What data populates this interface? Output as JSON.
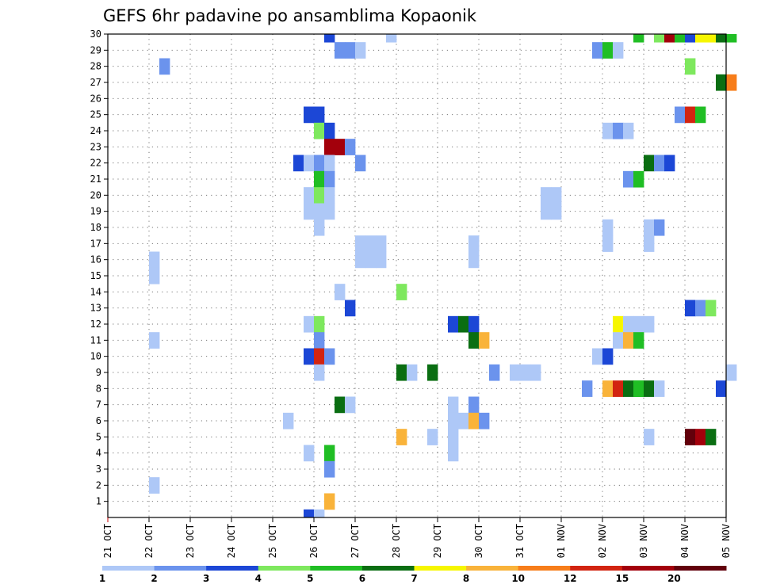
{
  "chart_data": {
    "type": "heatmap",
    "title": "GEFS 6hr padavine po ansamblima Kopaonik",
    "x_ticks": [
      "21 OCT",
      "22 OCT",
      "23 OCT",
      "24 OCT",
      "25 OCT",
      "26 OCT",
      "27 OCT",
      "28 OCT",
      "29 OCT",
      "30 OCT",
      "31 OCT",
      "01 NOV",
      "02 NOV",
      "03 NOV",
      "04 NOV",
      "05 NOV"
    ],
    "y_ticks": [
      1,
      2,
      3,
      4,
      5,
      6,
      7,
      8,
      9,
      10,
      11,
      12,
      13,
      14,
      15,
      16,
      17,
      18,
      19,
      20,
      21,
      22,
      23,
      24,
      25,
      26,
      27,
      28,
      29,
      30
    ],
    "x_range": [
      "21 OCT 00Z",
      "05 NOV 00Z"
    ],
    "y_range": [
      0,
      30
    ],
    "time_step_hours": 6,
    "grid": "dotted",
    "legend": {
      "placement": "bottom",
      "levels": [
        "1",
        "2",
        "3",
        "4",
        "5",
        "6",
        "7",
        "8",
        "10",
        "12",
        "15",
        "20"
      ],
      "colors": [
        "#aec8f7",
        "#6b93ed",
        "#1c47d6",
        "#7ee85e",
        "#20be24",
        "#0a6e12",
        "#f6f600",
        "#f9b33a",
        "#f77d1a",
        "#d22410",
        "#a3000b",
        "#62000b"
      ]
    },
    "cells": [
      {
        "member": 30,
        "time": "26 OCT 06Z",
        "bin": 3
      },
      {
        "member": 30,
        "time": "27 OCT 18Z",
        "bin": 1
      },
      {
        "member": 30,
        "time": "02 NOV 18Z",
        "bin": 5
      },
      {
        "member": 30,
        "time": "03 NOV 06Z",
        "bin": 4
      },
      {
        "member": 30,
        "time": "03 NOV 12Z",
        "bin": 11
      },
      {
        "member": 30,
        "time": "03 NOV 18Z",
        "bin": 5
      },
      {
        "member": 30,
        "time": "04 NOV 00Z",
        "bin": 3
      },
      {
        "member": 30,
        "time": "04 NOV 06Z",
        "bin": 7
      },
      {
        "member": 30,
        "time": "04 NOV 12Z",
        "bin": 7
      },
      {
        "member": 30,
        "time": "04 NOV 18Z",
        "bin": 6
      },
      {
        "member": 30,
        "time": "05 NOV 00Z",
        "bin": 5
      },
      {
        "member": 29,
        "time": "26 OCT 12Z",
        "bin": 2
      },
      {
        "member": 29,
        "time": "26 OCT 18Z",
        "bin": 2
      },
      {
        "member": 29,
        "time": "27 OCT 00Z",
        "bin": 1
      },
      {
        "member": 29,
        "time": "01 NOV 18Z",
        "bin": 2
      },
      {
        "member": 29,
        "time": "02 NOV 00Z",
        "bin": 5
      },
      {
        "member": 29,
        "time": "02 NOV 06Z",
        "bin": 1
      },
      {
        "member": 28,
        "time": "22 OCT 06Z",
        "bin": 2
      },
      {
        "member": 28,
        "time": "04 NOV 00Z",
        "bin": 4
      },
      {
        "member": 27,
        "time": "04 NOV 18Z",
        "bin": 6
      },
      {
        "member": 27,
        "time": "05 NOV 00Z",
        "bin": 9
      },
      {
        "member": 25,
        "time": "25 OCT 18Z",
        "bin": 3
      },
      {
        "member": 25,
        "time": "26 OCT 00Z",
        "bin": 3
      },
      {
        "member": 25,
        "time": "03 NOV 18Z",
        "bin": 2
      },
      {
        "member": 25,
        "time": "04 NOV 00Z",
        "bin": 10
      },
      {
        "member": 25,
        "time": "04 NOV 06Z",
        "bin": 5
      },
      {
        "member": 24,
        "time": "26 OCT 00Z",
        "bin": 4
      },
      {
        "member": 24,
        "time": "26 OCT 06Z",
        "bin": 3
      },
      {
        "member": 24,
        "time": "02 NOV 00Z",
        "bin": 1
      },
      {
        "member": 24,
        "time": "02 NOV 06Z",
        "bin": 2
      },
      {
        "member": 24,
        "time": "02 NOV 12Z",
        "bin": 1
      },
      {
        "member": 23,
        "time": "26 OCT 06Z",
        "bin": 11
      },
      {
        "member": 23,
        "time": "26 OCT 12Z",
        "bin": 11
      },
      {
        "member": 23,
        "time": "26 OCT 18Z",
        "bin": 2
      },
      {
        "member": 22,
        "time": "25 OCT 12Z",
        "bin": 3
      },
      {
        "member": 22,
        "time": "25 OCT 18Z",
        "bin": 1
      },
      {
        "member": 22,
        "time": "26 OCT 00Z",
        "bin": 2
      },
      {
        "member": 22,
        "time": "26 OCT 06Z",
        "bin": 1
      },
      {
        "member": 22,
        "time": "27 OCT 00Z",
        "bin": 2
      },
      {
        "member": 22,
        "time": "03 NOV 00Z",
        "bin": 6
      },
      {
        "member": 22,
        "time": "03 NOV 06Z",
        "bin": 2
      },
      {
        "member": 22,
        "time": "03 NOV 12Z",
        "bin": 3
      },
      {
        "member": 21,
        "time": "26 OCT 00Z",
        "bin": 5
      },
      {
        "member": 21,
        "time": "26 OCT 06Z",
        "bin": 2
      },
      {
        "member": 21,
        "time": "02 NOV 12Z",
        "bin": 2
      },
      {
        "member": 21,
        "time": "02 NOV 18Z",
        "bin": 5
      },
      {
        "member": 20,
        "time": "25 OCT 18Z",
        "bin": 1
      },
      {
        "member": 20,
        "time": "26 OCT 00Z",
        "bin": 4
      },
      {
        "member": 20,
        "time": "26 OCT 06Z",
        "bin": 1
      },
      {
        "member": 20,
        "time": "31 OCT 12Z",
        "bin": 1
      },
      {
        "member": 20,
        "time": "31 OCT 18Z",
        "bin": 1
      },
      {
        "member": 19,
        "time": "25 OCT 18Z",
        "bin": 1
      },
      {
        "member": 19,
        "time": "26 OCT 00Z",
        "bin": 1
      },
      {
        "member": 19,
        "time": "26 OCT 06Z",
        "bin": 1
      },
      {
        "member": 19,
        "time": "31 OCT 12Z",
        "bin": 1
      },
      {
        "member": 19,
        "time": "31 OCT 18Z",
        "bin": 1
      },
      {
        "member": 18,
        "time": "26 OCT 00Z",
        "bin": 1
      },
      {
        "member": 18,
        "time": "02 NOV 00Z",
        "bin": 1
      },
      {
        "member": 18,
        "time": "03 NOV 00Z",
        "bin": 1
      },
      {
        "member": 18,
        "time": "03 NOV 06Z",
        "bin": 2
      },
      {
        "member": 17,
        "time": "27 OCT 00Z",
        "bin": 1
      },
      {
        "member": 17,
        "time": "27 OCT 06Z",
        "bin": 1
      },
      {
        "member": 17,
        "time": "27 OCT 12Z",
        "bin": 1
      },
      {
        "member": 17,
        "time": "29 OCT 18Z",
        "bin": 1
      },
      {
        "member": 17,
        "time": "02 NOV 00Z",
        "bin": 1
      },
      {
        "member": 17,
        "time": "03 NOV 00Z",
        "bin": 1
      },
      {
        "member": 16,
        "time": "22 OCT 00Z",
        "bin": 1
      },
      {
        "member": 16,
        "time": "27 OCT 00Z",
        "bin": 1
      },
      {
        "member": 16,
        "time": "27 OCT 06Z",
        "bin": 1
      },
      {
        "member": 16,
        "time": "27 OCT 12Z",
        "bin": 1
      },
      {
        "member": 16,
        "time": "29 OCT 18Z",
        "bin": 1
      },
      {
        "member": 15,
        "time": "22 OCT 00Z",
        "bin": 1
      },
      {
        "member": 14,
        "time": "26 OCT 12Z",
        "bin": 1
      },
      {
        "member": 14,
        "time": "28 OCT 00Z",
        "bin": 4
      },
      {
        "member": 13,
        "time": "26 OCT 18Z",
        "bin": 3
      },
      {
        "member": 13,
        "time": "04 NOV 00Z",
        "bin": 3
      },
      {
        "member": 13,
        "time": "04 NOV 06Z",
        "bin": 2
      },
      {
        "member": 13,
        "time": "04 NOV 12Z",
        "bin": 4
      },
      {
        "member": 12,
        "time": "25 OCT 18Z",
        "bin": 1
      },
      {
        "member": 12,
        "time": "26 OCT 00Z",
        "bin": 4
      },
      {
        "member": 12,
        "time": "29 OCT 06Z",
        "bin": 3
      },
      {
        "member": 12,
        "time": "29 OCT 12Z",
        "bin": 6
      },
      {
        "member": 12,
        "time": "29 OCT 18Z",
        "bin": 3
      },
      {
        "member": 12,
        "time": "02 NOV 06Z",
        "bin": 7
      },
      {
        "member": 12,
        "time": "02 NOV 12Z",
        "bin": 1
      },
      {
        "member": 12,
        "time": "02 NOV 18Z",
        "bin": 1
      },
      {
        "member": 12,
        "time": "03 NOV 00Z",
        "bin": 1
      },
      {
        "member": 11,
        "time": "22 OCT 00Z",
        "bin": 1
      },
      {
        "member": 11,
        "time": "26 OCT 00Z",
        "bin": 2
      },
      {
        "member": 11,
        "time": "29 OCT 18Z",
        "bin": 6
      },
      {
        "member": 11,
        "time": "30 OCT 00Z",
        "bin": 8
      },
      {
        "member": 11,
        "time": "02 NOV 06Z",
        "bin": 1
      },
      {
        "member": 11,
        "time": "02 NOV 12Z",
        "bin": 8
      },
      {
        "member": 11,
        "time": "02 NOV 18Z",
        "bin": 5
      },
      {
        "member": 10,
        "time": "25 OCT 18Z",
        "bin": 3
      },
      {
        "member": 10,
        "time": "26 OCT 00Z",
        "bin": 10
      },
      {
        "member": 10,
        "time": "26 OCT 06Z",
        "bin": 2
      },
      {
        "member": 10,
        "time": "01 NOV 18Z",
        "bin": 1
      },
      {
        "member": 10,
        "time": "02 NOV 00Z",
        "bin": 3
      },
      {
        "member": 9,
        "time": "26 OCT 00Z",
        "bin": 1
      },
      {
        "member": 9,
        "time": "28 OCT 18Z",
        "bin": 6
      },
      {
        "member": 9,
        "time": "28 OCT 00Z",
        "bin": 6
      },
      {
        "member": 9,
        "time": "28 OCT 06Z",
        "bin": 1
      },
      {
        "member": 9,
        "time": "30 OCT 06Z",
        "bin": 2
      },
      {
        "member": 9,
        "time": "30 OCT 18Z",
        "bin": 1
      },
      {
        "member": 9,
        "time": "31 OCT 00Z",
        "bin": 1
      },
      {
        "member": 9,
        "time": "31 OCT 06Z",
        "bin": 1
      },
      {
        "member": 9,
        "time": "05 NOV 00Z",
        "bin": 1
      },
      {
        "member": 8,
        "time": "01 NOV 12Z",
        "bin": 2
      },
      {
        "member": 8,
        "time": "02 NOV 18Z",
        "bin": 5
      },
      {
        "member": 8,
        "time": "02 NOV 00Z",
        "bin": 8
      },
      {
        "member": 8,
        "time": "02 NOV 06Z",
        "bin": 10
      },
      {
        "member": 8,
        "time": "02 NOV 12Z",
        "bin": 6
      },
      {
        "member": 8,
        "time": "02 NOV 18Z",
        "bin": 5
      },
      {
        "member": 8,
        "time": "03 NOV 00Z",
        "bin": 6
      },
      {
        "member": 8,
        "time": "03 NOV 06Z",
        "bin": 1
      },
      {
        "member": 8,
        "time": "04 NOV 18Z",
        "bin": 3
      },
      {
        "member": 7,
        "time": "26 OCT 12Z",
        "bin": 6
      },
      {
        "member": 7,
        "time": "26 OCT 18Z",
        "bin": 1
      },
      {
        "member": 7,
        "time": "29 OCT 18Z",
        "bin": 2
      },
      {
        "member": 7,
        "time": "29 OCT 06Z",
        "bin": 1
      },
      {
        "member": 6,
        "time": "25 OCT 06Z",
        "bin": 1
      },
      {
        "member": 6,
        "time": "29 OCT 06Z",
        "bin": 1
      },
      {
        "member": 6,
        "time": "29 OCT 12Z",
        "bin": 1
      },
      {
        "member": 6,
        "time": "29 OCT 18Z",
        "bin": 8
      },
      {
        "member": 6,
        "time": "30 OCT 00Z",
        "bin": 2
      },
      {
        "member": 5,
        "time": "28 OCT 18Z",
        "bin": 1
      },
      {
        "member": 5,
        "time": "28 OCT 00Z",
        "bin": 8
      },
      {
        "member": 5,
        "time": "29 OCT 06Z",
        "bin": 1
      },
      {
        "member": 5,
        "time": "03 NOV 00Z",
        "bin": 1
      },
      {
        "member": 5,
        "time": "04 NOV 00Z",
        "bin": 12
      },
      {
        "member": 5,
        "time": "04 NOV 06Z",
        "bin": 11
      },
      {
        "member": 5,
        "time": "04 NOV 12Z",
        "bin": 6
      },
      {
        "member": 4,
        "time": "25 OCT 18Z",
        "bin": 1
      },
      {
        "member": 4,
        "time": "26 OCT 06Z",
        "bin": 5
      },
      {
        "member": 4,
        "time": "29 OCT 06Z",
        "bin": 1
      },
      {
        "member": 3,
        "time": "26 OCT 06Z",
        "bin": 2
      },
      {
        "member": 2,
        "time": "22 OCT 00Z",
        "bin": 1
      },
      {
        "member": 1,
        "time": "26 OCT 06Z",
        "bin": 8
      },
      {
        "member": 0,
        "time": "25 OCT 18Z",
        "bin": 3
      },
      {
        "member": 0,
        "time": "26 OCT 00Z",
        "bin": 1
      }
    ]
  }
}
